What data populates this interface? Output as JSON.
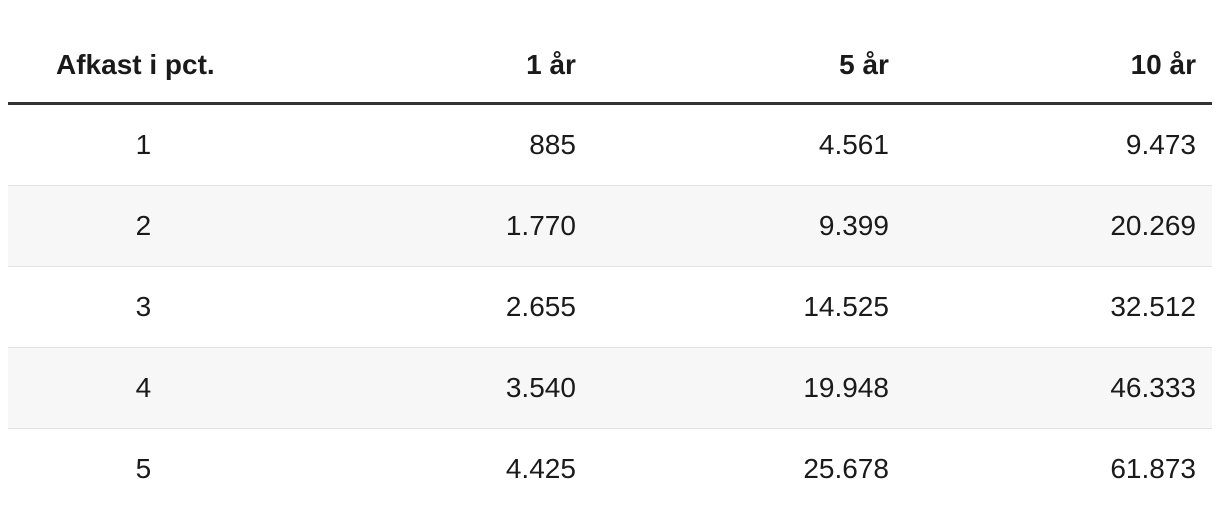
{
  "table": {
    "columns": [
      {
        "label": "Afkast i pct."
      },
      {
        "label": "1 år"
      },
      {
        "label": "5 år"
      },
      {
        "label": "10 år"
      }
    ],
    "rows": [
      [
        "1",
        "885",
        "4.561",
        "9.473"
      ],
      [
        "2",
        "1.770",
        "9.399",
        "20.269"
      ],
      [
        "3",
        "2.655",
        "14.525",
        "32.512"
      ],
      [
        "4",
        "3.540",
        "19.948",
        "46.333"
      ],
      [
        "5",
        "4.425",
        "25.678",
        "61.873"
      ]
    ]
  },
  "colors": {
    "text": "#1a1a1a",
    "header_rule": "#333333",
    "row_divider": "#e2e2e2",
    "row_alt_background": "#f7f7f7",
    "background": "#ffffff"
  },
  "chart_data": {
    "type": "table",
    "title": "Afkast i pct.",
    "columns": [
      "Afkast i pct.",
      "1 år",
      "5 år",
      "10 år"
    ],
    "rows": [
      [
        1,
        885,
        4561,
        9473
      ],
      [
        2,
        1770,
        9399,
        20269
      ],
      [
        3,
        2655,
        14525,
        32512
      ],
      [
        4,
        3540,
        19948,
        46333
      ],
      [
        5,
        4425,
        25678,
        61873
      ]
    ],
    "layout_hints": {
      "number_locale_format": "da-DK (dot as thousands separator)",
      "first_column_alignment": "center",
      "value_columns_alignment": "right",
      "zebra_striping": "even rows shaded"
    }
  }
}
